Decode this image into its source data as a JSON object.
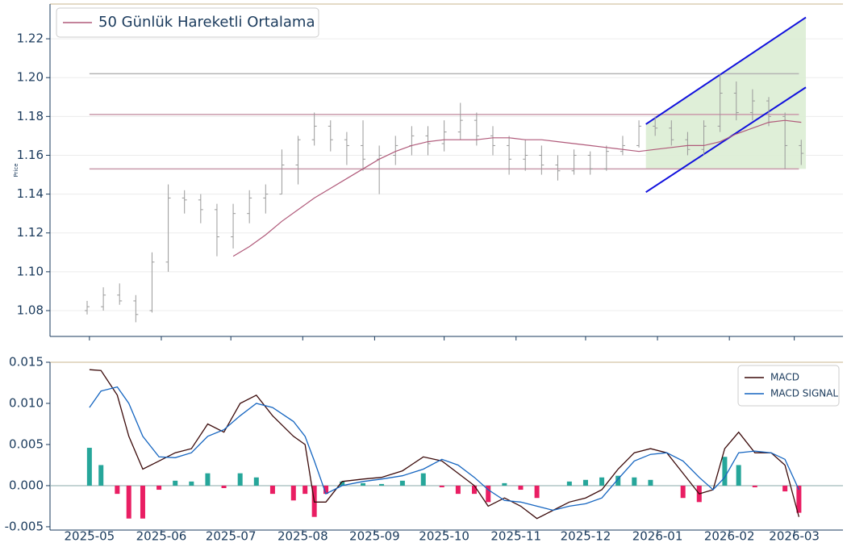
{
  "chart_data": [
    {
      "type": "ohlc",
      "y_label": "Price",
      "color": "#9a9a9a",
      "grid": true,
      "legend": "upper left",
      "x": [
        "2025-04-30",
        "2025-05-07",
        "2025-05-14",
        "2025-05-21",
        "2025-05-28",
        "2025-06-04",
        "2025-06-11",
        "2025-06-18",
        "2025-06-25",
        "2025-07-02",
        "2025-07-09",
        "2025-07-16",
        "2025-07-23",
        "2025-07-30",
        "2025-08-06",
        "2025-08-13",
        "2025-08-20",
        "2025-08-27",
        "2025-09-03",
        "2025-09-10",
        "2025-09-17",
        "2025-09-24",
        "2025-10-01",
        "2025-10-08",
        "2025-10-15",
        "2025-10-22",
        "2025-10-29",
        "2025-11-05",
        "2025-11-12",
        "2025-11-19",
        "2025-11-26",
        "2025-12-03",
        "2025-12-10",
        "2025-12-17",
        "2025-12-24",
        "2025-12-31",
        "2026-01-07",
        "2026-01-14",
        "2026-01-21",
        "2026-01-28",
        "2026-02-04",
        "2026-02-11",
        "2026-02-18",
        "2026-02-25",
        "2026-03-04"
      ],
      "open": [
        1.08,
        1.082,
        1.088,
        1.085,
        1.08,
        1.105,
        1.138,
        1.137,
        1.132,
        1.118,
        1.13,
        1.138,
        1.14,
        1.155,
        1.168,
        1.175,
        1.168,
        1.165,
        1.158,
        1.16,
        1.165,
        1.17,
        1.166,
        1.172,
        1.178,
        1.17,
        1.165,
        1.158,
        1.16,
        1.155,
        1.152,
        1.16,
        1.153,
        1.162,
        1.165,
        1.175,
        1.174,
        1.168,
        1.163,
        1.175,
        1.192,
        1.182,
        1.188,
        1.18,
        1.165
      ],
      "high": [
        1.085,
        1.092,
        1.094,
        1.088,
        1.11,
        1.145,
        1.142,
        1.14,
        1.135,
        1.135,
        1.142,
        1.145,
        1.163,
        1.17,
        1.182,
        1.178,
        1.172,
        1.178,
        1.165,
        1.17,
        1.175,
        1.175,
        1.178,
        1.187,
        1.182,
        1.175,
        1.17,
        1.168,
        1.165,
        1.16,
        1.163,
        1.162,
        1.165,
        1.17,
        1.178,
        1.18,
        1.178,
        1.172,
        1.178,
        1.202,
        1.198,
        1.194,
        1.19,
        1.182,
        1.168
      ],
      "low": [
        1.078,
        1.08,
        1.083,
        1.074,
        1.079,
        1.1,
        1.13,
        1.125,
        1.108,
        1.112,
        1.125,
        1.13,
        1.14,
        1.145,
        1.165,
        1.162,
        1.155,
        1.152,
        1.14,
        1.155,
        1.16,
        1.16,
        1.162,
        1.168,
        1.165,
        1.16,
        1.15,
        1.152,
        1.15,
        1.147,
        1.15,
        1.15,
        1.152,
        1.16,
        1.164,
        1.17,
        1.165,
        1.16,
        1.16,
        1.172,
        1.178,
        1.178,
        1.175,
        1.153,
        1.155
      ],
      "close": [
        1.082,
        1.088,
        1.085,
        1.078,
        1.105,
        1.138,
        1.137,
        1.132,
        1.118,
        1.13,
        1.138,
        1.14,
        1.155,
        1.168,
        1.175,
        1.168,
        1.165,
        1.158,
        1.16,
        1.165,
        1.17,
        1.166,
        1.172,
        1.178,
        1.17,
        1.165,
        1.158,
        1.16,
        1.155,
        1.152,
        1.16,
        1.153,
        1.162,
        1.165,
        1.175,
        1.174,
        1.168,
        1.163,
        1.175,
        1.192,
        1.182,
        1.188,
        1.18,
        1.165,
        1.161
      ],
      "moving_average": {
        "name": "50 Günlük Hareketli Ortalama",
        "color": "#b05a7a",
        "values": [
          null,
          null,
          null,
          null,
          null,
          null,
          null,
          null,
          null,
          1.108,
          1.113,
          1.119,
          1.126,
          1.132,
          1.138,
          1.143,
          1.148,
          1.153,
          1.158,
          1.162,
          1.165,
          1.167,
          1.168,
          1.168,
          1.168,
          1.169,
          1.169,
          1.168,
          1.168,
          1.167,
          1.166,
          1.165,
          1.164,
          1.163,
          1.162,
          1.163,
          1.164,
          1.165,
          1.165,
          1.167,
          1.171,
          1.174,
          1.177,
          1.178,
          1.177
        ]
      },
      "level_x": [
        "2025-05-01",
        "2026-03-03"
      ],
      "levels": [
        {
          "value": 1.202,
          "color": "#b4b4b4"
        },
        {
          "value": 1.181,
          "color": "#c99aab"
        },
        {
          "value": 1.153,
          "color": "#c99aab"
        }
      ],
      "channel": {
        "x": [
          "2025-12-27",
          "2026-03-06"
        ],
        "upper": [
          1.176,
          1.231
        ],
        "lower": [
          1.141,
          1.195
        ],
        "color": "#1010dd",
        "fill": "#dcedd4"
      },
      "xlim": [
        "2025-04-14",
        "2026-03-22"
      ],
      "xticks": [
        "2025-05-01",
        "2025-06-01",
        "2025-07-01",
        "2025-08-01",
        "2025-09-01",
        "2025-10-01",
        "2025-11-01",
        "2025-12-01",
        "2026-01-01",
        "2026-02-01",
        "2026-03-01"
      ],
      "ylim": [
        1.0667,
        1.2379
      ],
      "yticks": [
        1.08,
        {
          "value": 1.1,
          "label": "1.10"
        },
        1.12,
        1.14,
        1.16,
        1.18,
        {
          "value": 1.2,
          "label": "1.20"
        },
        1.22
      ]
    },
    {
      "type": "macd",
      "legend": "upper right",
      "x": [
        "2025-05-01",
        "2025-05-06",
        "2025-05-13",
        "2025-05-18",
        "2025-05-24",
        "2025-05-31",
        "2025-06-07",
        "2025-06-14",
        "2025-06-21",
        "2025-06-28",
        "2025-07-05",
        "2025-07-12",
        "2025-07-19",
        "2025-07-28",
        "2025-08-02",
        "2025-08-06",
        "2025-08-11",
        "2025-08-18",
        "2025-08-27",
        "2025-09-04",
        "2025-09-13",
        "2025-09-22",
        "2025-09-30",
        "2025-10-07",
        "2025-10-14",
        "2025-10-20",
        "2025-10-27",
        "2025-11-03",
        "2025-11-10",
        "2025-11-17",
        "2025-11-24",
        "2025-12-01",
        "2025-12-08",
        "2025-12-15",
        "2025-12-22",
        "2025-12-29",
        "2026-01-05",
        "2026-01-12",
        "2026-01-19",
        "2026-01-25",
        "2026-01-30",
        "2026-02-05",
        "2026-02-12",
        "2026-02-19",
        "2026-02-25",
        "2026-03-03"
      ],
      "series": [
        {
          "name": "MACD",
          "color": "#3b0a0a",
          "values": [
            0.0141,
            0.014,
            0.011,
            0.006,
            0.002,
            0.003,
            0.004,
            0.0045,
            0.0075,
            0.0065,
            0.01,
            0.011,
            0.0085,
            0.006,
            0.005,
            -0.002,
            -0.002,
            0.0005,
            0.0008,
            0.001,
            0.0018,
            0.0035,
            0.003,
            0.0015,
            0,
            -0.0025,
            -0.0015,
            -0.0025,
            -0.004,
            -0.003,
            -0.002,
            -0.0015,
            -0.0005,
            0.002,
            0.004,
            0.0045,
            0.004,
            0.0015,
            -0.001,
            -0.0005,
            0.0045,
            0.0065,
            0.004,
            0.004,
            0.0025,
            -0.0038
          ]
        },
        {
          "name": "MACD SIGNAL",
          "color": "#1565c0",
          "values": [
            0.0095,
            0.0115,
            0.012,
            0.01,
            0.006,
            0.0035,
            0.0034,
            0.004,
            0.006,
            0.0068,
            0.0085,
            0.01,
            0.0095,
            0.0078,
            0.006,
            0.003,
            -0.001,
            0,
            0.0005,
            0.0008,
            0.0012,
            0.002,
            0.0032,
            0.0025,
            0.001,
            -0.0005,
            -0.0018,
            -0.002,
            -0.0025,
            -0.003,
            -0.0025,
            -0.0022,
            -0.0015,
            0.0008,
            0.003,
            0.0038,
            0.004,
            0.003,
            0.001,
            -0.0005,
            0.001,
            0.004,
            0.0042,
            0.004,
            0.0032,
            -0.0005
          ]
        }
      ],
      "histogram": {
        "positive_color": "#26a69a",
        "negative_color": "#e91e63",
        "values": [
          0.0046,
          0.0025,
          -0.001,
          -0.004,
          -0.004,
          -0.0005,
          0.0006,
          0.0005,
          0.0015,
          -0.0003,
          0.0015,
          0.001,
          -0.001,
          -0.0018,
          -0.001,
          -0.0038,
          -0.001,
          0.0005,
          0.0003,
          0.0002,
          0.0006,
          0.0015,
          -0.0002,
          -0.001,
          -0.001,
          -0.002,
          0.0003,
          -0.0005,
          -0.0015,
          0,
          0.0005,
          0.0007,
          0.001,
          0.0012,
          0.001,
          0.0007,
          0,
          -0.0015,
          -0.002,
          0,
          0.0035,
          0.0025,
          -0.0002,
          0,
          -0.0007,
          -0.0033
        ]
      },
      "xlim": [
        "2025-04-14",
        "2026-03-22"
      ],
      "xticks": [
        {
          "value": "2025-05-01",
          "label": "2025-05"
        },
        {
          "value": "2025-06-01",
          "label": "2025-06"
        },
        {
          "value": "2025-07-01",
          "label": "2025-07"
        },
        {
          "value": "2025-08-01",
          "label": "2025-08"
        },
        {
          "value": "2025-09-01",
          "label": "2025-09"
        },
        {
          "value": "2025-10-01",
          "label": "2025-10"
        },
        {
          "value": "2025-11-01",
          "label": "2025-11"
        },
        {
          "value": "2025-12-01",
          "label": "2025-12"
        },
        {
          "value": "2026-01-01",
          "label": "2026-01"
        },
        {
          "value": "2026-02-01",
          "label": "2026-02"
        },
        {
          "value": "2026-03-01",
          "label": "2026-03"
        }
      ],
      "ylim": [
        -0.0054,
        0.015
      ],
      "yticks": [
        {
          "value": -0.005,
          "label": "-0.005"
        },
        {
          "value": 0,
          "label": "0.000"
        },
        {
          "value": 0.005,
          "label": "0.005"
        },
        {
          "value": 0.01,
          "label": "0.010"
        },
        {
          "value": 0.015,
          "label": "0.015"
        }
      ]
    }
  ]
}
